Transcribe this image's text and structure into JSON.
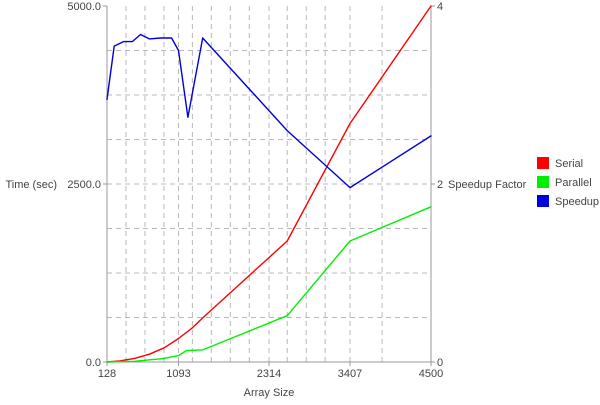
{
  "chart_data": {
    "type": "line",
    "title": "",
    "xlabel": "Array Size",
    "ylabel_left": "Time (sec)",
    "ylabel_right": "Speedup Factor",
    "xlim": [
      128,
      4500
    ],
    "ylim_left": [
      0,
      5000
    ],
    "ylim_right": [
      0,
      4
    ],
    "x_ticks": [
      128,
      1093,
      2314,
      3407,
      4500
    ],
    "x_tick_labels": [
      "128",
      "1093",
      "2314",
      "3407",
      "4500"
    ],
    "x_grid": [
      128,
      384,
      640,
      896,
      1093,
      1280,
      1536,
      1792,
      2048,
      2314,
      2560,
      2816,
      3072,
      3407,
      3840,
      4500
    ],
    "y_left_ticks": [
      0,
      2500,
      5000
    ],
    "y_left_tick_labels": [
      "0.0",
      "2500.0",
      "5000.0"
    ],
    "y_right_ticks": [
      0,
      2,
      4
    ],
    "y_right_tick_labels": [
      "0",
      "2",
      "4"
    ],
    "y_right_grid": [
      0.5,
      1.0,
      1.5,
      2.0,
      2.5,
      3.0,
      3.5
    ],
    "grid": true,
    "legend_position": "right",
    "series": [
      {
        "name": "Serial",
        "axis": "left",
        "color": "#ff0000",
        "x": [
          128,
          300,
          500,
          700,
          900,
          1093,
          1280,
          1420,
          2560,
          3407,
          4500
        ],
        "y": [
          0,
          15,
          50,
          110,
          200,
          330,
          480,
          620,
          1700,
          3350,
          5000
        ]
      },
      {
        "name": "Parallel",
        "axis": "left",
        "color": "#00ee00",
        "x": [
          128,
          500,
          900,
          1093,
          1200,
          1420,
          2560,
          3407,
          4500
        ],
        "y": [
          0,
          10,
          50,
          90,
          160,
          170,
          650,
          1700,
          2180
        ]
      },
      {
        "name": "Speedup",
        "axis": "right",
        "color": "#0000dd",
        "x": [
          128,
          225,
          350,
          470,
          580,
          700,
          850,
          1000,
          1093,
          1220,
          1420,
          2560,
          3407,
          4500
        ],
        "y": [
          2.95,
          3.55,
          3.6,
          3.6,
          3.68,
          3.63,
          3.64,
          3.64,
          3.5,
          2.75,
          3.64,
          2.6,
          1.96,
          2.54
        ]
      }
    ]
  }
}
